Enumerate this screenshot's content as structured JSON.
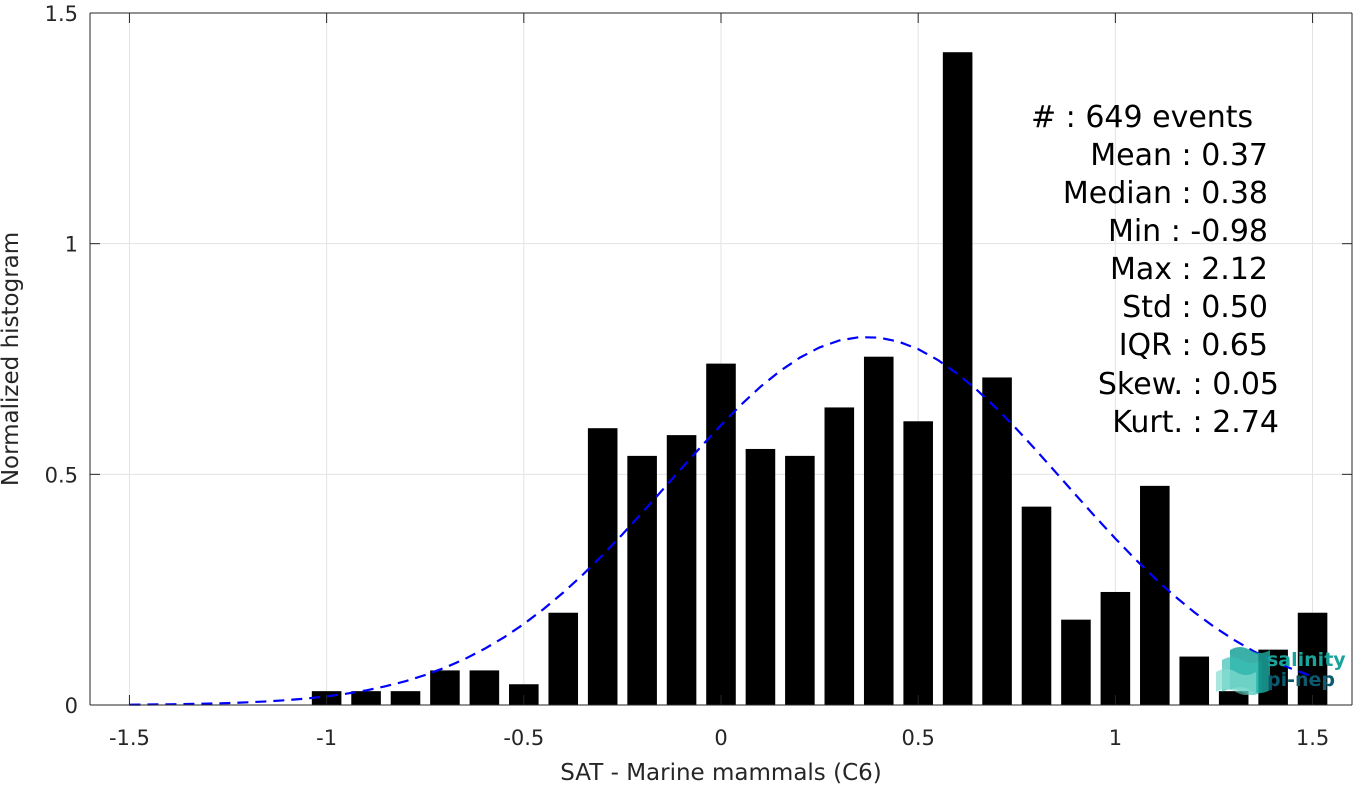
{
  "chart_data": {
    "type": "bar",
    "xlabel": "SAT - Marine mammals (C6)",
    "ylabel": "Normalized histogram",
    "xlim": [
      -1.6,
      1.6
    ],
    "ylim": [
      0,
      1.5
    ],
    "x_ticks": [
      -1.5,
      -1,
      -0.5,
      0,
      0.5,
      1,
      1.5
    ],
    "x_tick_labels": [
      "-1.5",
      "-1",
      "-0.5",
      "0",
      "0.5",
      "1",
      "1.5"
    ],
    "y_ticks": [
      0,
      0.5,
      1,
      1.5
    ],
    "y_tick_labels": [
      "0",
      "0.5",
      "1",
      "1.5"
    ],
    "grid": true,
    "bar_width": 0.075,
    "bars": [
      {
        "x": -1.0,
        "value": 0.03
      },
      {
        "x": -0.9,
        "value": 0.03
      },
      {
        "x": -0.8,
        "value": 0.03
      },
      {
        "x": -0.7,
        "value": 0.075
      },
      {
        "x": -0.6,
        "value": 0.075
      },
      {
        "x": -0.5,
        "value": 0.045
      },
      {
        "x": -0.4,
        "value": 0.2
      },
      {
        "x": -0.3,
        "value": 0.6
      },
      {
        "x": -0.2,
        "value": 0.54
      },
      {
        "x": -0.1,
        "value": 0.585
      },
      {
        "x": 0.0,
        "value": 0.74
      },
      {
        "x": 0.1,
        "value": 0.555
      },
      {
        "x": 0.2,
        "value": 0.54
      },
      {
        "x": 0.3,
        "value": 0.645
      },
      {
        "x": 0.4,
        "value": 0.755
      },
      {
        "x": 0.5,
        "value": 0.615
      },
      {
        "x": 0.6,
        "value": 1.415
      },
      {
        "x": 0.7,
        "value": 0.71
      },
      {
        "x": 0.8,
        "value": 0.43
      },
      {
        "x": 0.9,
        "value": 0.185
      },
      {
        "x": 1.0,
        "value": 0.245
      },
      {
        "x": 1.1,
        "value": 0.475
      },
      {
        "x": 1.2,
        "value": 0.105
      },
      {
        "x": 1.3,
        "value": 0.03
      },
      {
        "x": 1.4,
        "value": 0.12
      },
      {
        "x": 1.5,
        "value": 0.2
      }
    ],
    "fit_curve": {
      "style": "dashed",
      "color": "#0000ff",
      "mean": 0.37,
      "std": 0.5,
      "x_range": [
        -1.5,
        1.5
      ]
    },
    "bar_color": "#000000"
  },
  "stats": [
    {
      "label": "#  : 649 events"
    },
    {
      "label": "Mean : 0.37"
    },
    {
      "label": "Median : 0.38"
    },
    {
      "label": "Min : -0.98"
    },
    {
      "label": "Max : 2.12"
    },
    {
      "label": "Std : 0.50"
    },
    {
      "label": "IQR : 0.65"
    },
    {
      "label": "Skew. : 0.05"
    },
    {
      "label": "Kurt. : 2.74"
    }
  ],
  "logo": {
    "line1": "salinity",
    "line2": "pi-nep",
    "color_primary": "#1aa39a",
    "color_secondary": "#0b5a6e"
  }
}
